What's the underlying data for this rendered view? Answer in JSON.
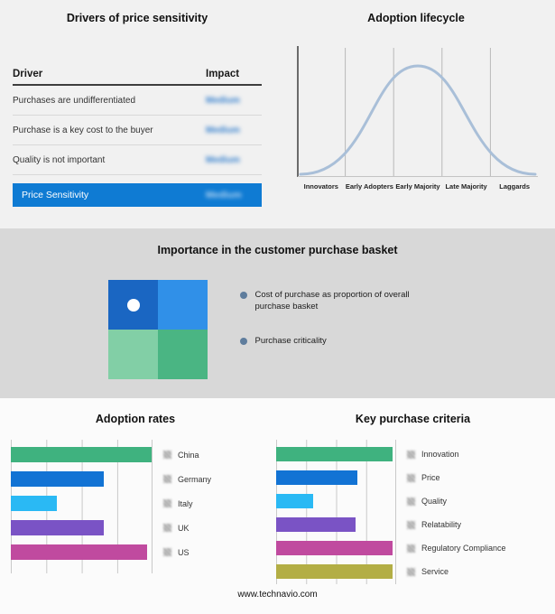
{
  "footer": {
    "site": "www.technavio.com"
  },
  "chart_data": [
    {
      "type": "table",
      "title": "Drivers of price sensitivity",
      "columns": [
        "Driver",
        "Impact"
      ],
      "rows": [
        {
          "driver": "Purchases are undifferentiated",
          "impact": "Medium"
        },
        {
          "driver": "Purchase is a key cost to the buyer",
          "impact": "Medium"
        },
        {
          "driver": "Quality is not important",
          "impact": "Medium"
        }
      ],
      "summary_row": {
        "driver": "Price Sensitivity",
        "impact": "Medium"
      },
      "highlight_color": "#0f7bd3",
      "impact_color": "#2f7ccc",
      "summary_impact_color": "#b9d8f3"
    },
    {
      "type": "line",
      "title": "Adoption lifecycle",
      "categories": [
        "Innovators",
        "Early Adopters",
        "Early Majority",
        "Late Majority",
        "Laggards"
      ],
      "curve": "normal-distribution bell curve peaking over Early Majority",
      "curve_color": "#a9bfd8"
    },
    {
      "type": "heatmap",
      "title": "Importance in the customer purchase basket",
      "quadrant_colors": [
        "#1a66c2",
        "#3090e8",
        "#82cfa6",
        "#4ab583"
      ],
      "marker_quadrant": "top-left",
      "bullet_color": "#5f7d9d",
      "legend": [
        "Cost of purchase as proportion of overall purchase basket",
        "Purchase criticality"
      ]
    },
    {
      "type": "bar",
      "title": "Adoption rates",
      "orientation": "horizontal",
      "categories": [
        "China",
        "Germany",
        "Italy",
        "UK",
        "US"
      ],
      "values": [
        100,
        66,
        33,
        66,
        97
      ],
      "colors": [
        "#3fb27f",
        "#1273d4",
        "#2ab9f4",
        "#7a53c5",
        "#c04a9f"
      ],
      "xlim": [
        0,
        100
      ],
      "grid": true
    },
    {
      "type": "bar",
      "title": "Key purchase criteria",
      "orientation": "horizontal",
      "categories": [
        "Innovation",
        "Price",
        "Quality",
        "Relatability",
        "Regulatory Compliance",
        "Service"
      ],
      "values": [
        98,
        68,
        31,
        67,
        98,
        98
      ],
      "colors": [
        "#3fb27f",
        "#1273d4",
        "#2ab9f4",
        "#7a53c5",
        "#c04a9f",
        "#b3ae45"
      ],
      "xlim": [
        0,
        100
      ],
      "grid": true
    }
  ]
}
